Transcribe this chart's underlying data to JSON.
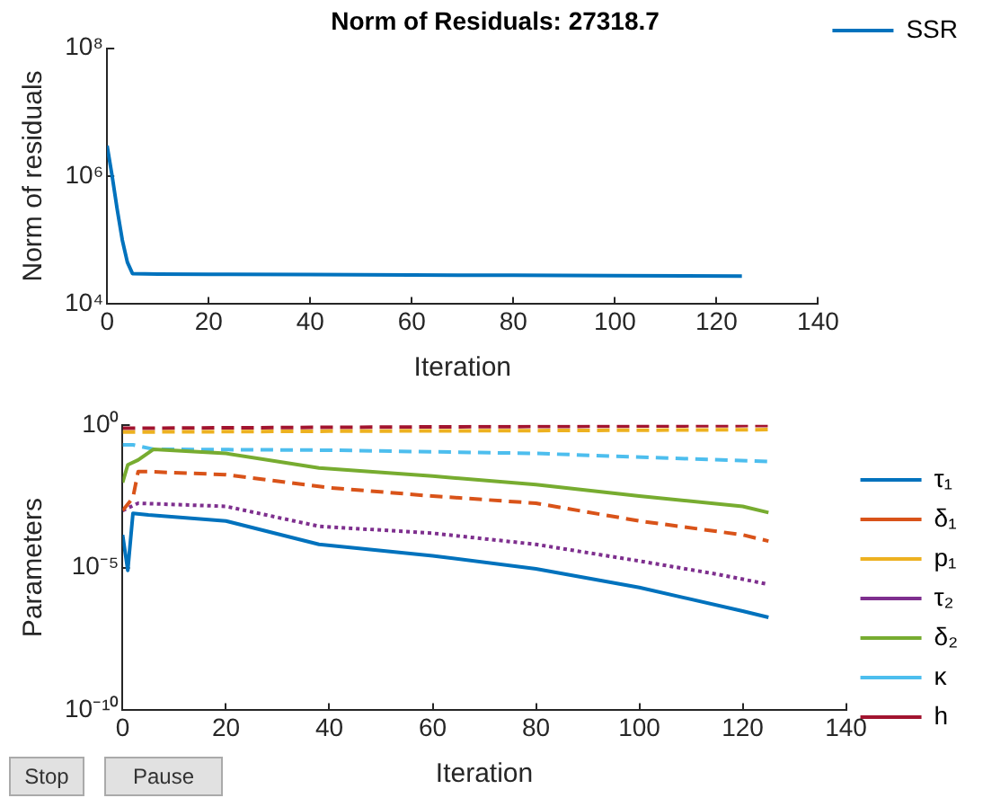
{
  "chart_data": [
    {
      "type": "line",
      "title": "Norm of Residuals: 27318.7",
      "xlabel": "Iteration",
      "ylabel": "Norm of residuals",
      "log": "y",
      "grid": false,
      "legend": "top right",
      "line_style": "solid",
      "marker": "none",
      "xlim": [
        0,
        140
      ],
      "xticks": [
        0,
        20,
        40,
        60,
        80,
        100,
        120,
        140
      ],
      "ylim": [
        10000,
        100000000
      ],
      "yticks": [
        {
          "value": 10000,
          "label": "10⁴"
        },
        {
          "value": 1000000,
          "label": "10⁶"
        },
        {
          "value": 100000000,
          "label": "10⁸"
        }
      ],
      "series": [
        {
          "name": "SSR",
          "color": "#0072bd",
          "x": [
            0,
            1,
            2,
            3,
            4,
            5,
            10,
            20,
            40,
            60,
            80,
            100,
            125
          ],
          "values": [
            3000000,
            1000000,
            300000,
            100000,
            45000,
            30000,
            29500,
            29300,
            29000,
            28500,
            28200,
            27800,
            27318.7
          ]
        }
      ]
    },
    {
      "type": "line",
      "xlabel": "Iteration",
      "ylabel": "Parameters",
      "log": "y",
      "grid": false,
      "legend": "right",
      "marker": "none",
      "xlim": [
        0,
        140
      ],
      "xticks": [
        0,
        20,
        40,
        60,
        80,
        100,
        120,
        140
      ],
      "ylim": [
        1e-10,
        1
      ],
      "yticks": [
        {
          "value": 1e-10,
          "label": "10⁻¹⁰"
        },
        {
          "value": 1e-05,
          "label": "10⁻⁵"
        },
        {
          "value": 1,
          "label": "10⁰"
        }
      ],
      "annotations": [
        "Stop",
        "Pause"
      ],
      "series": [
        {
          "name": "τ₁",
          "color": "#0072bd",
          "line_style": "solid",
          "x": [
            0,
            1,
            2,
            5,
            20,
            38,
            60,
            80,
            100,
            120,
            125
          ],
          "values": [
            0.00014,
            8e-06,
            0.0008,
            0.0007,
            0.00043,
            6.5e-05,
            2.6e-05,
            9e-06,
            2e-06,
            3e-07,
            1.8e-07
          ]
        },
        {
          "name": "δ₁",
          "color": "#d95319",
          "line_style": "dashed",
          "x": [
            0,
            2,
            3,
            5,
            20,
            40,
            60,
            80,
            100,
            120,
            125
          ],
          "values": [
            0.001,
            0.0028,
            0.023,
            0.023,
            0.018,
            0.0063,
            0.0032,
            0.0018,
            0.00043,
            0.00014,
            8.5e-05
          ]
        },
        {
          "name": "p₁",
          "color": "#edb120",
          "line_style": "dashed",
          "x": [
            0,
            40,
            80,
            125
          ],
          "values": [
            0.56,
            0.6,
            0.63,
            0.68
          ]
        },
        {
          "name": "τ₂",
          "color": "#7e2f8e",
          "line_style": "dotted",
          "x": [
            0,
            3,
            20,
            38,
            60,
            80,
            100,
            115,
            125
          ],
          "values": [
            0.001,
            0.0018,
            0.0014,
            0.00028,
            0.00016,
            6.5e-05,
            1.7e-05,
            5.9e-06,
            2.6e-06
          ]
        },
        {
          "name": "δ₂",
          "color": "#77ac30",
          "line_style": "solid",
          "x": [
            0,
            1,
            3,
            6,
            20,
            38,
            60,
            80,
            100,
            120,
            125
          ],
          "values": [
            0.0095,
            0.04,
            0.059,
            0.14,
            0.1,
            0.031,
            0.016,
            0.0081,
            0.0032,
            0.0014,
            0.00085
          ]
        },
        {
          "name": "κ",
          "color": "#4dbeee",
          "line_style": "dashed",
          "x": [
            0,
            2,
            6,
            40,
            80,
            125
          ],
          "values": [
            0.2,
            0.2,
            0.14,
            0.13,
            0.1,
            0.052
          ]
        },
        {
          "name": "h",
          "color": "#a2142f",
          "line_style": "dashed",
          "x": [
            0,
            40,
            80,
            125
          ],
          "values": [
            0.76,
            0.82,
            0.88,
            0.95
          ]
        }
      ]
    }
  ]
}
